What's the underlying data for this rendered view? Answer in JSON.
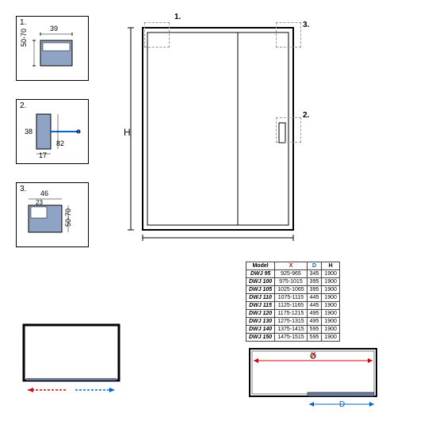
{
  "details": {
    "d1": {
      "label": "1.",
      "w": "39",
      "h": "50-70"
    },
    "d2": {
      "label": "2.",
      "a": "38",
      "b": "17",
      "c": "82"
    },
    "d3": {
      "label": "3.",
      "w": "46",
      "inner": "23",
      "h": "50-70"
    }
  },
  "main": {
    "h_label": "H",
    "callouts": {
      "c1": "1.",
      "c2": "2.",
      "c3": "3."
    }
  },
  "table": {
    "headers": {
      "model": "Model",
      "x": "X",
      "d": "D",
      "h": "H"
    },
    "rows": [
      {
        "model": "DWJ 95",
        "x": "925-965",
        "d": "345",
        "h": "1900"
      },
      {
        "model": "DWJ 100",
        "x": "975-1015",
        "d": "395",
        "h": "1900"
      },
      {
        "model": "DWJ 105",
        "x": "1025-1065",
        "d": "395",
        "h": "1900"
      },
      {
        "model": "DWJ 110",
        "x": "1075-1115",
        "d": "445",
        "h": "1900"
      },
      {
        "model": "DWJ 115",
        "x": "1125-1165",
        "d": "445",
        "h": "1900"
      },
      {
        "model": "DWJ 120",
        "x": "1175-1215",
        "d": "495",
        "h": "1900"
      },
      {
        "model": "DWJ 130",
        "x": "1275-1315",
        "d": "495",
        "h": "1900"
      },
      {
        "model": "DWJ 140",
        "x": "1375-1415",
        "d": "595",
        "h": "1900"
      },
      {
        "model": "DWJ 150",
        "x": "1475-1515",
        "d": "595",
        "h": "1900"
      }
    ]
  },
  "plan2": {
    "x_label": "X",
    "d_label": "D"
  },
  "colors": {
    "red": "#d00",
    "blue": "#06c",
    "black": "#000",
    "gray": "#999"
  }
}
